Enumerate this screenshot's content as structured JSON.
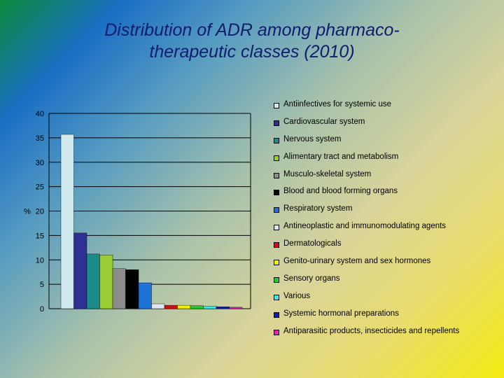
{
  "title_line1": "Distribution of ADR among pharmaco-",
  "title_line2": "therapeutic classes (2010)",
  "chart_data": {
    "type": "bar",
    "title": "Distribution of ADR among pharmaco-therapeutic classes (2010)",
    "ylabel": "%",
    "ylim": [
      0,
      40
    ],
    "yticks": [
      0,
      5,
      10,
      15,
      20,
      25,
      30,
      35,
      40
    ],
    "grid": true,
    "legend_position": "right",
    "categories": [
      "Antiinfectives for systemic use",
      "Cardiovascular system",
      "Nervous system",
      "Alimentary tract and metabolism",
      "Musculo-skeletal system",
      "Blood and blood forming organs",
      "Respiratory system",
      "Antineoplastic and immunomodulating agents",
      "Dermatologicals",
      "Genito-urinary system and sex hormones",
      "Sensory organs",
      "Various",
      "Systemic hormonal preparations",
      "Antiparasitic products, insecticides and repellents"
    ],
    "values": [
      35.7,
      15.5,
      11.2,
      11.0,
      8.2,
      8.0,
      5.3,
      1.0,
      0.7,
      0.7,
      0.6,
      0.5,
      0.4,
      0.3
    ],
    "colors": [
      "#cfe9ee",
      "#2e3192",
      "#1b8a8a",
      "#9acd32",
      "#8c8c8c",
      "#000000",
      "#1e73d6",
      "#e2e4f2",
      "#d01010",
      "#f2f200",
      "#22cc22",
      "#40e8e8",
      "#1020a0",
      "#e020c0"
    ]
  }
}
